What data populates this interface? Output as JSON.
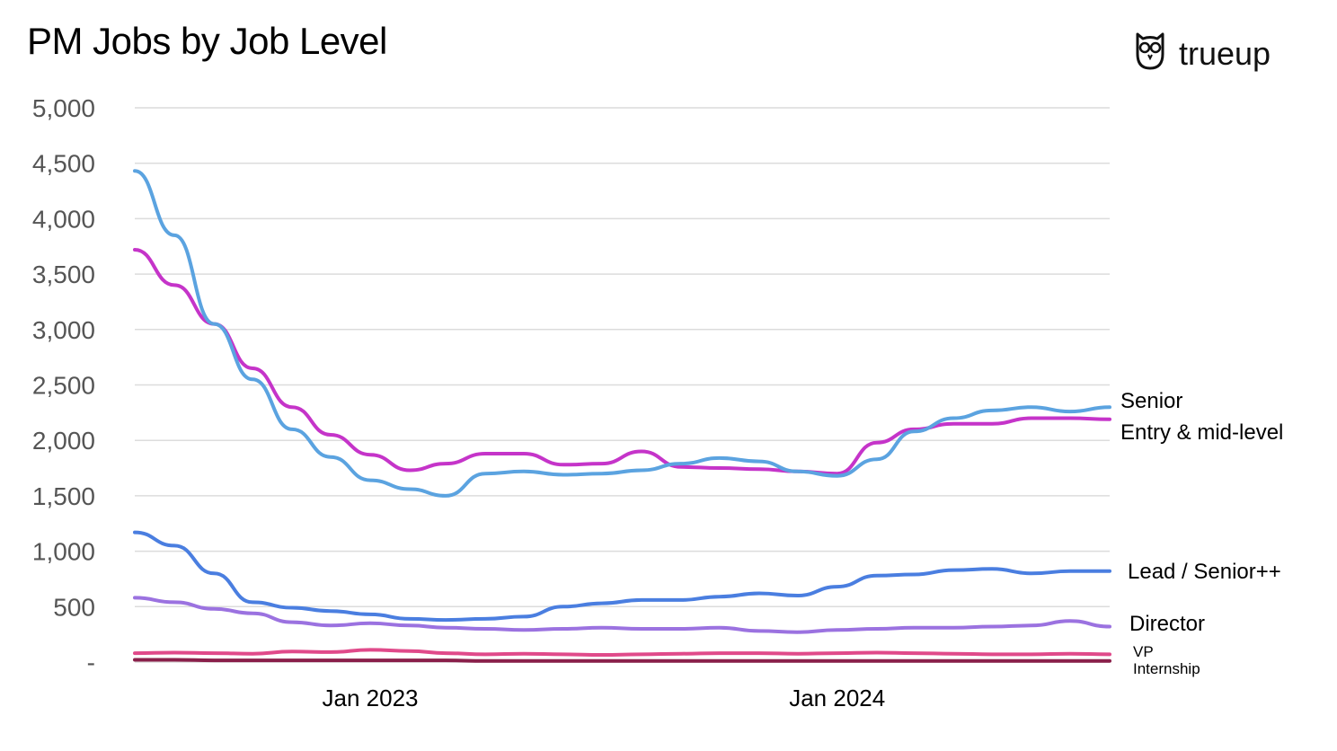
{
  "chart_data": {
    "type": "line",
    "title": "PM Jobs by Job Level",
    "xlabel": "",
    "ylabel": "",
    "ylim": [
      0,
      5000
    ],
    "yticks": [
      0,
      500,
      1000,
      1500,
      2000,
      2500,
      3000,
      3500,
      4000,
      4500,
      5000
    ],
    "ytick_labels": [
      "-",
      "500",
      "1,000",
      "1,500",
      "2,000",
      "2,500",
      "3,000",
      "3,500",
      "4,000",
      "4,500",
      "5,000"
    ],
    "x_range": [
      "2022-07-01",
      "2024-08-01"
    ],
    "xticks": [
      {
        "date": "2023-01-01",
        "label": "Jan 2023"
      },
      {
        "date": "2024-01-01",
        "label": "Jan 2024"
      }
    ],
    "grid": true,
    "legend": "line-end labels",
    "series": [
      {
        "name": "Senior",
        "color": "#5ba3e0",
        "x": [
          "2022-07",
          "2022-08",
          "2022-09",
          "2022-10",
          "2022-11",
          "2022-12",
          "2023-01",
          "2023-02",
          "2023-03",
          "2023-04",
          "2023-05",
          "2023-06",
          "2023-07",
          "2023-08",
          "2023-09",
          "2023-10",
          "2023-11",
          "2023-12",
          "2024-01",
          "2024-02",
          "2024-03",
          "2024-04",
          "2024-05",
          "2024-06",
          "2024-07",
          "2024-08"
        ],
        "values": [
          4430,
          3850,
          3050,
          2550,
          2100,
          1850,
          1640,
          1560,
          1500,
          1700,
          1720,
          1690,
          1700,
          1730,
          1790,
          1840,
          1810,
          1720,
          1680,
          1830,
          2080,
          2200,
          2270,
          2300,
          2260,
          2300
        ]
      },
      {
        "name": "Entry & mid-level",
        "color": "#c534c9",
        "x": [
          "2022-07",
          "2022-08",
          "2022-09",
          "2022-10",
          "2022-11",
          "2022-12",
          "2023-01",
          "2023-02",
          "2023-03",
          "2023-04",
          "2023-05",
          "2023-06",
          "2023-07",
          "2023-08",
          "2023-09",
          "2023-10",
          "2023-11",
          "2023-12",
          "2024-01",
          "2024-02",
          "2024-03",
          "2024-04",
          "2024-05",
          "2024-06",
          "2024-07",
          "2024-08"
        ],
        "values": [
          3720,
          3400,
          3050,
          2650,
          2300,
          2050,
          1870,
          1730,
          1790,
          1880,
          1880,
          1780,
          1790,
          1900,
          1760,
          1750,
          1740,
          1720,
          1700,
          1980,
          2100,
          2150,
          2150,
          2200,
          2200,
          2190
        ]
      },
      {
        "name": "Lead / Senior++",
        "color": "#4a7ee0",
        "x": [
          "2022-07",
          "2022-08",
          "2022-09",
          "2022-10",
          "2022-11",
          "2022-12",
          "2023-01",
          "2023-02",
          "2023-03",
          "2023-04",
          "2023-05",
          "2023-06",
          "2023-07",
          "2023-08",
          "2023-09",
          "2023-10",
          "2023-11",
          "2023-12",
          "2024-01",
          "2024-02",
          "2024-03",
          "2024-04",
          "2024-05",
          "2024-06",
          "2024-07",
          "2024-08"
        ],
        "values": [
          1170,
          1050,
          800,
          540,
          490,
          460,
          430,
          390,
          380,
          390,
          410,
          500,
          530,
          560,
          560,
          590,
          620,
          600,
          680,
          780,
          790,
          830,
          840,
          800,
          820,
          820
        ]
      },
      {
        "name": "Director",
        "color": "#9b72e0",
        "x": [
          "2022-07",
          "2022-08",
          "2022-09",
          "2022-10",
          "2022-11",
          "2022-12",
          "2023-01",
          "2023-02",
          "2023-03",
          "2023-04",
          "2023-05",
          "2023-06",
          "2023-07",
          "2023-08",
          "2023-09",
          "2023-10",
          "2023-11",
          "2023-12",
          "2024-01",
          "2024-02",
          "2024-03",
          "2024-04",
          "2024-05",
          "2024-06",
          "2024-07",
          "2024-08"
        ],
        "values": [
          580,
          540,
          480,
          440,
          360,
          330,
          350,
          330,
          310,
          300,
          290,
          300,
          310,
          300,
          300,
          310,
          280,
          270,
          290,
          300,
          310,
          310,
          320,
          330,
          370,
          320
        ]
      },
      {
        "name": "VP",
        "color": "#e04a8a",
        "x": [
          "2022-07",
          "2022-08",
          "2022-09",
          "2022-10",
          "2022-11",
          "2022-12",
          "2023-01",
          "2023-02",
          "2023-03",
          "2023-04",
          "2023-05",
          "2023-06",
          "2023-07",
          "2023-08",
          "2023-09",
          "2023-10",
          "2023-11",
          "2023-12",
          "2024-01",
          "2024-02",
          "2024-03",
          "2024-04",
          "2024-05",
          "2024-06",
          "2024-07",
          "2024-08"
        ],
        "values": [
          80,
          85,
          80,
          75,
          95,
          90,
          110,
          100,
          80,
          70,
          75,
          70,
          65,
          70,
          75,
          80,
          80,
          75,
          80,
          85,
          80,
          75,
          70,
          70,
          75,
          70
        ]
      },
      {
        "name": "Internship",
        "color": "#8a1f4a",
        "x": [
          "2022-07",
          "2022-08",
          "2022-09",
          "2022-10",
          "2022-11",
          "2022-12",
          "2023-01",
          "2023-02",
          "2023-03",
          "2023-04",
          "2023-05",
          "2023-06",
          "2023-07",
          "2023-08",
          "2023-09",
          "2023-10",
          "2023-11",
          "2023-12",
          "2024-01",
          "2024-02",
          "2024-03",
          "2024-04",
          "2024-05",
          "2024-06",
          "2024-07",
          "2024-08"
        ],
        "values": [
          20,
          20,
          15,
          15,
          15,
          15,
          15,
          15,
          15,
          10,
          10,
          10,
          10,
          10,
          10,
          10,
          10,
          10,
          10,
          10,
          10,
          10,
          10,
          10,
          10,
          10
        ]
      }
    ]
  },
  "brand": {
    "name": "trueup",
    "icon": "owl-icon"
  }
}
